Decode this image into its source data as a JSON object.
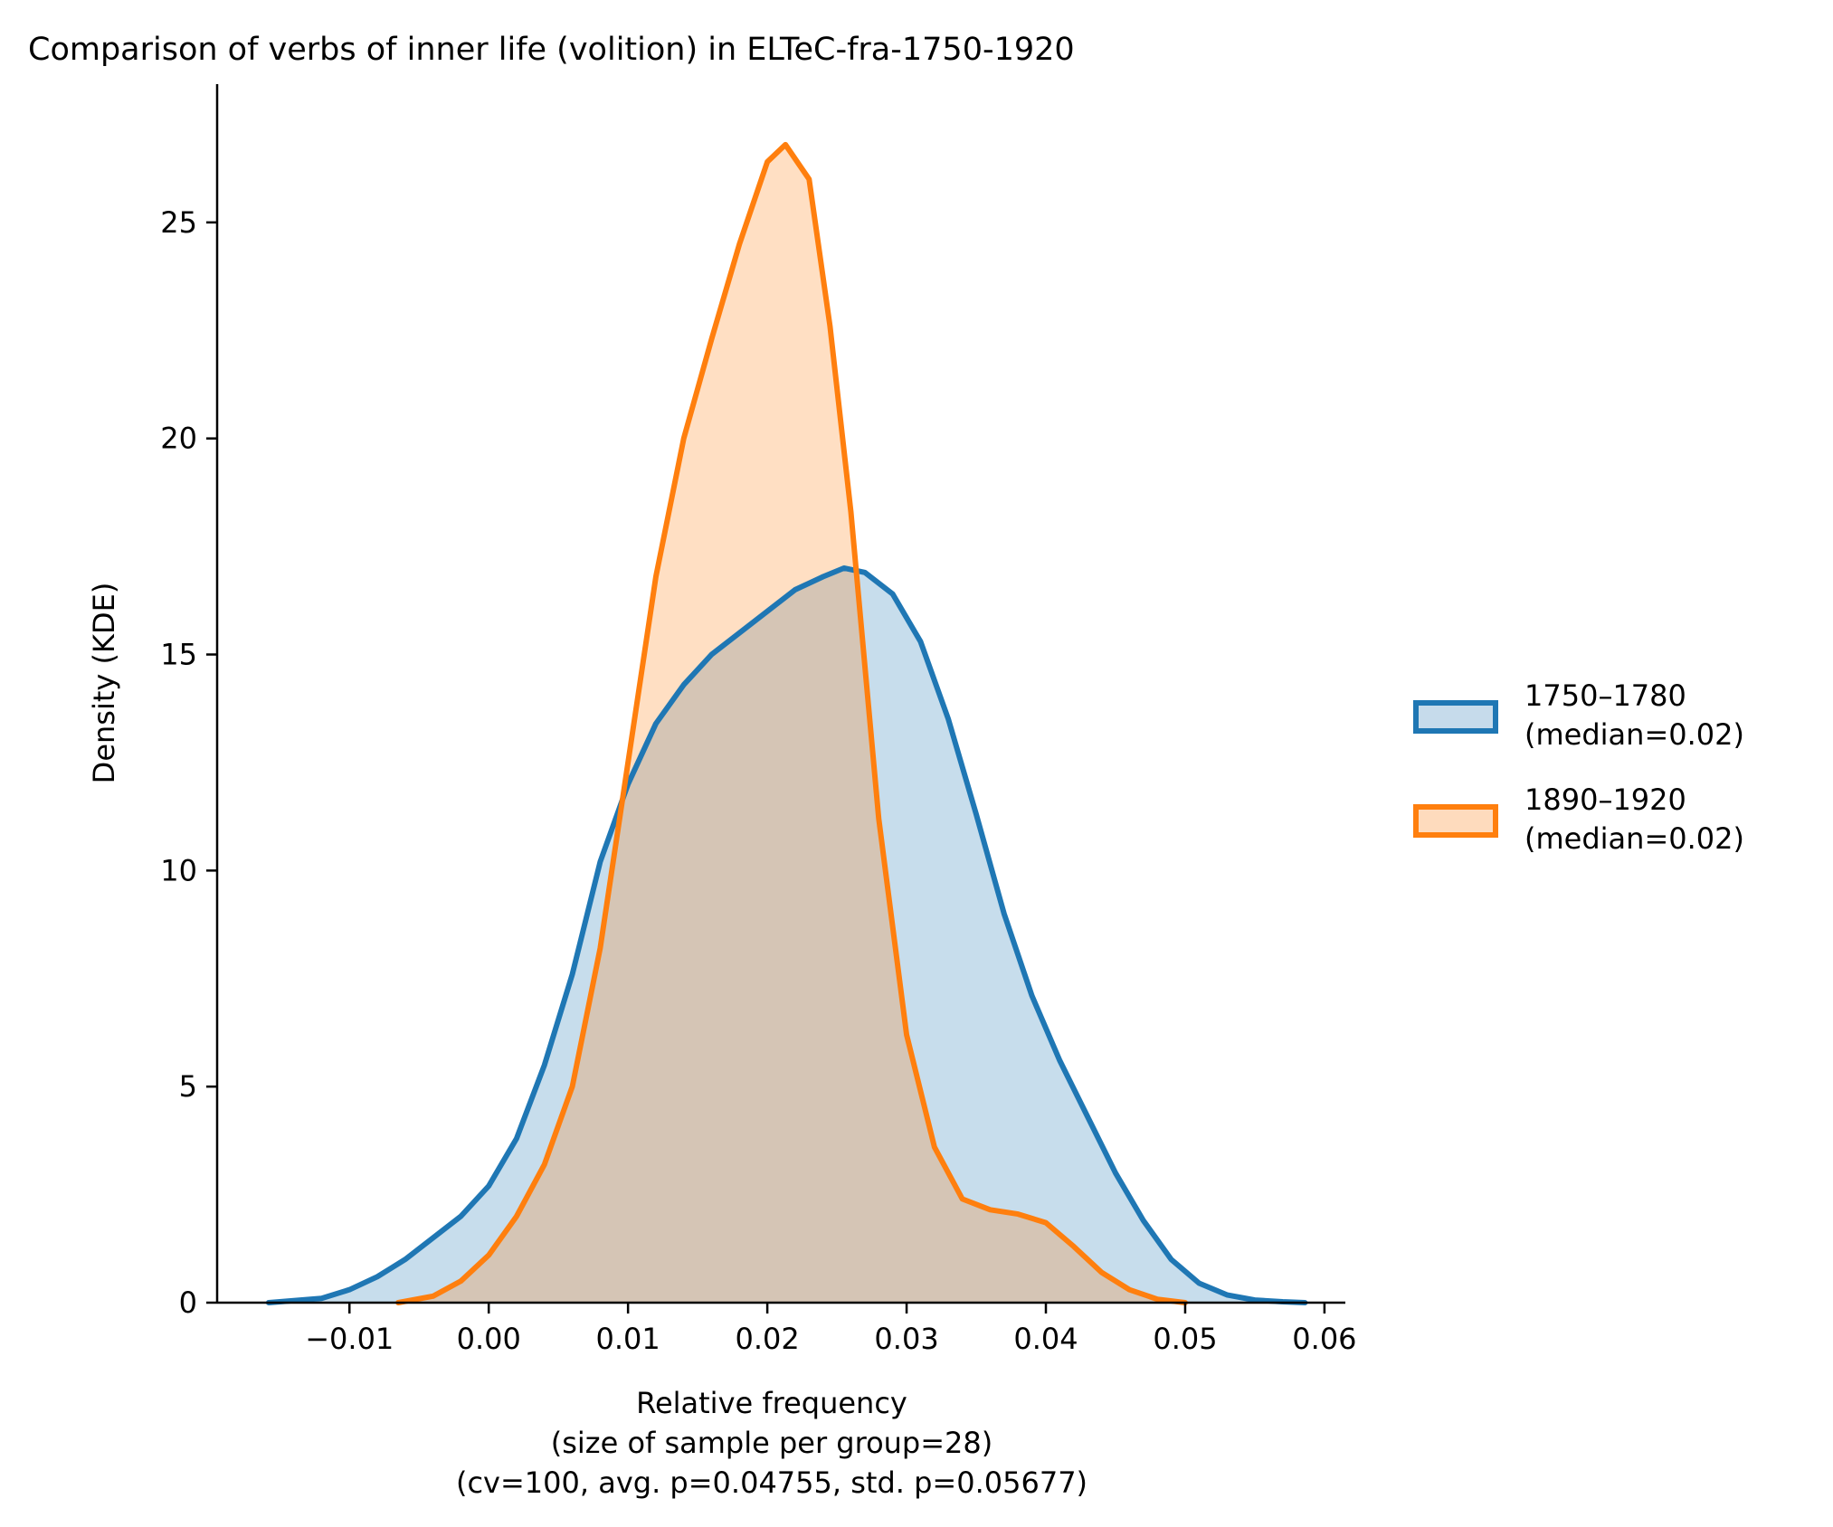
{
  "chart_data": {
    "type": "area",
    "title": "Comparison of verbs of inner life (volition) in ELTeC-fra-1750-1920",
    "xlabel": "Relative frequency",
    "xlabel_lines": [
      "Relative frequency",
      "(size of sample per group=28)",
      "(cv=100, avg. p=0.04755, std. p=0.05677)"
    ],
    "ylabel": "Density (KDE)",
    "xlim": [
      -0.0195,
      0.0615
    ],
    "ylim": [
      0,
      28.2
    ],
    "x_ticks": [
      -0.01,
      0.0,
      0.01,
      0.02,
      0.03,
      0.04,
      0.05,
      0.06
    ],
    "x_tick_labels": [
      "−0.01",
      "0.00",
      "0.01",
      "0.02",
      "0.03",
      "0.04",
      "0.05",
      "0.06"
    ],
    "y_ticks": [
      0,
      5,
      10,
      15,
      20,
      25
    ],
    "y_tick_labels": [
      "0",
      "5",
      "10",
      "15",
      "20",
      "25"
    ],
    "grid": false,
    "legend_position": "right",
    "series": [
      {
        "name": "1750–1780\n(median=0.02)",
        "legend_lines": [
          "1750–1780",
          "(median=0.02)"
        ],
        "color": "#1f77b4",
        "fill": "#c6dbeb",
        "x": [
          -0.0158,
          -0.012,
          -0.01,
          -0.008,
          -0.006,
          -0.004,
          -0.002,
          0.0,
          0.002,
          0.004,
          0.006,
          0.008,
          0.01,
          0.012,
          0.014,
          0.016,
          0.018,
          0.02,
          0.022,
          0.024,
          0.0255,
          0.027,
          0.029,
          0.031,
          0.033,
          0.035,
          0.037,
          0.039,
          0.041,
          0.043,
          0.045,
          0.047,
          0.049,
          0.051,
          0.053,
          0.055,
          0.057,
          0.0586
        ],
        "y": [
          0.0,
          0.1,
          0.3,
          0.6,
          1.0,
          1.5,
          2.0,
          2.7,
          3.8,
          5.5,
          7.6,
          10.2,
          12.0,
          13.4,
          14.3,
          15.0,
          15.5,
          16.0,
          16.5,
          16.8,
          17.0,
          16.9,
          16.4,
          15.3,
          13.5,
          11.3,
          9.0,
          7.1,
          5.6,
          4.3,
          3.0,
          1.9,
          1.0,
          0.45,
          0.18,
          0.06,
          0.02,
          0.0
        ]
      },
      {
        "name": "1890–1920\n(median=0.02)",
        "legend_lines": [
          "1890–1920",
          "(median=0.02)"
        ],
        "color": "#ff7f0e",
        "fill": "#fedbbd",
        "x": [
          -0.0065,
          -0.004,
          -0.002,
          0.0,
          0.002,
          0.004,
          0.006,
          0.008,
          0.01,
          0.012,
          0.014,
          0.016,
          0.018,
          0.02,
          0.0213,
          0.023,
          0.0245,
          0.026,
          0.028,
          0.03,
          0.032,
          0.034,
          0.036,
          0.038,
          0.04,
          0.042,
          0.044,
          0.046,
          0.048,
          0.05
        ],
        "y": [
          0.0,
          0.15,
          0.5,
          1.1,
          2.0,
          3.2,
          5.0,
          8.2,
          12.5,
          16.8,
          20.0,
          22.3,
          24.5,
          26.4,
          26.8,
          26.0,
          22.6,
          18.3,
          11.2,
          6.2,
          3.6,
          2.4,
          2.15,
          2.05,
          1.85,
          1.3,
          0.7,
          0.3,
          0.08,
          0.0
        ]
      }
    ]
  }
}
